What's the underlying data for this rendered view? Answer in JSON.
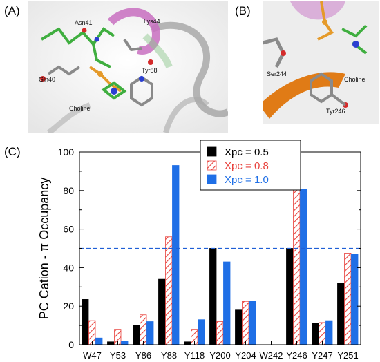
{
  "panels": {
    "a": {
      "label": "(A)",
      "residue_labels": {
        "asn": "Asn41",
        "lys": "Lys44",
        "gln": "Gln40",
        "tyr": "Tyr88",
        "choline": "Choline"
      }
    },
    "b": {
      "label": "(B)",
      "residue_labels": {
        "ser": "Ser244",
        "choline": "Choline",
        "tyr": "Tyr246"
      }
    },
    "c": {
      "label": "(C)"
    }
  },
  "colors": {
    "series_0_5": "#000000",
    "series_0_8_hatch": "#e8413c",
    "series_1_0": "#1f6fe6",
    "legend_text_0_8": "#e8413c",
    "legend_text_1_0": "#1f6fe6",
    "reference_line": "#1f5fd6"
  },
  "chart_data": {
    "type": "bar",
    "ylabel": "PC Cation - π Occupancy",
    "xlabel": "",
    "ylim": [
      0,
      100
    ],
    "yticks": [
      0,
      20,
      40,
      60,
      80,
      100
    ],
    "categories": [
      "W47",
      "Y53",
      "Y86",
      "Y88",
      "Y118",
      "Y200",
      "Y204",
      "W242",
      "Y246",
      "Y247",
      "Y251"
    ],
    "series": [
      {
        "name": "Xpc = 0.5",
        "style": "solid-black",
        "values": [
          23.5,
          1.5,
          10,
          34,
          1.5,
          50,
          18,
          0,
          50,
          11,
          32
        ]
      },
      {
        "name": "Xpc = 0.8",
        "style": "hatched-red",
        "values": [
          12.5,
          8,
          15.5,
          56,
          8,
          12,
          22.5,
          0,
          84.5,
          11.5,
          47.5
        ]
      },
      {
        "name": "Xpc = 1.0",
        "style": "solid-blue",
        "values": [
          3.5,
          2,
          12,
          93,
          13,
          43,
          22.5,
          0,
          80.5,
          12.5,
          47
        ]
      }
    ],
    "reference_line": {
      "y": 50,
      "style": "dashed"
    },
    "legend": {
      "position": "top-center"
    }
  }
}
